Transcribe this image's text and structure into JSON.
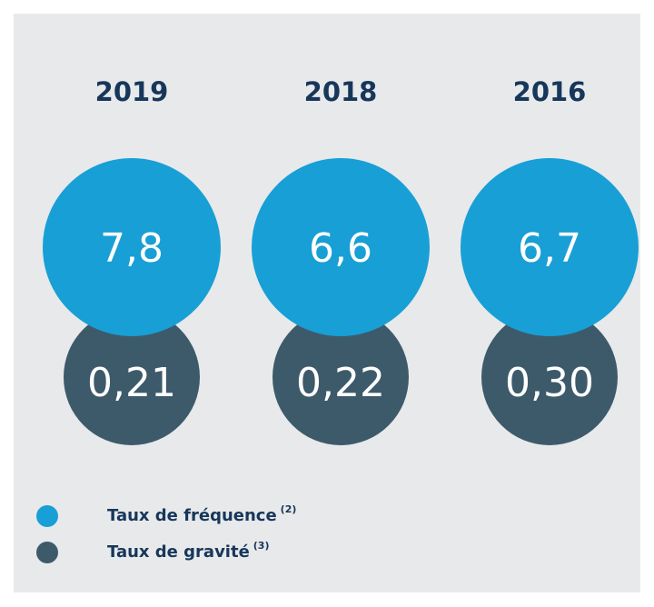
{
  "columns": [
    {
      "year": "2019",
      "frequence": "7,8",
      "gravite": "0,21"
    },
    {
      "year": "2018",
      "frequence": "6,6",
      "gravite": "0,22"
    },
    {
      "year": "2016",
      "frequence": "6,7",
      "gravite": "0,30"
    }
  ],
  "legend": [
    {
      "label": "Taux de fréquence",
      "note": "(2)"
    },
    {
      "label": "Taux de gravité",
      "note": "(3)"
    }
  ]
}
